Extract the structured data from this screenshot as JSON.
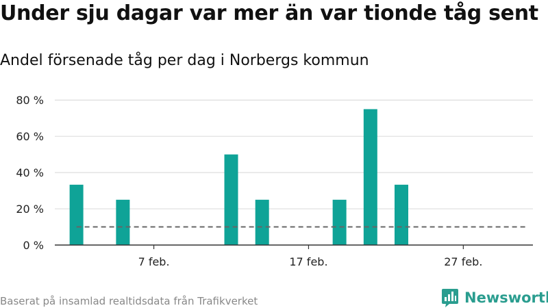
{
  "header": {
    "title": "Under sju dagar var mer än var tionde tåg sent",
    "subtitle": "Andel försenade tåg per dag i Norbergs kommun"
  },
  "footer": {
    "source": "Baserat på insamlad realtidsdata från Trafikverket",
    "brand": "Newsworthy"
  },
  "colors": {
    "bar": "#0fa397",
    "reference_line": "#666666",
    "grid": "#dddddd",
    "axis": "#333333",
    "brand": "#2a9d8f"
  },
  "icons": {
    "logo": "newsworthy-bar-chart-logo-icon"
  },
  "chart_data": {
    "type": "bar",
    "title": "Andel försenade tåg per dag i Norbergs kommun",
    "xlabel": "",
    "ylabel": "",
    "ylim": [
      0,
      85
    ],
    "yticks": [
      {
        "value": 0,
        "label": "0 %"
      },
      {
        "value": 20,
        "label": "20 %"
      },
      {
        "value": 40,
        "label": "40 %"
      },
      {
        "value": 60,
        "label": "60 %"
      },
      {
        "value": 80,
        "label": "80 %"
      }
    ],
    "xrange_day": [
      0.6,
      31.5
    ],
    "xticks": [
      {
        "day": 7,
        "label": "7 feb."
      },
      {
        "day": 17,
        "label": "17 feb."
      },
      {
        "day": 27,
        "label": "27 feb."
      }
    ],
    "bars": [
      {
        "day": 2,
        "value": 33.3
      },
      {
        "day": 5,
        "value": 25
      },
      {
        "day": 12,
        "value": 50
      },
      {
        "day": 14,
        "value": 25
      },
      {
        "day": 19,
        "value": 25
      },
      {
        "day": 21,
        "value": 75
      },
      {
        "day": 23,
        "value": 33.3
      }
    ],
    "reference_line": {
      "value": 10,
      "from_day": 2,
      "to_day": 31,
      "style": "dashed"
    },
    "grid": true
  }
}
